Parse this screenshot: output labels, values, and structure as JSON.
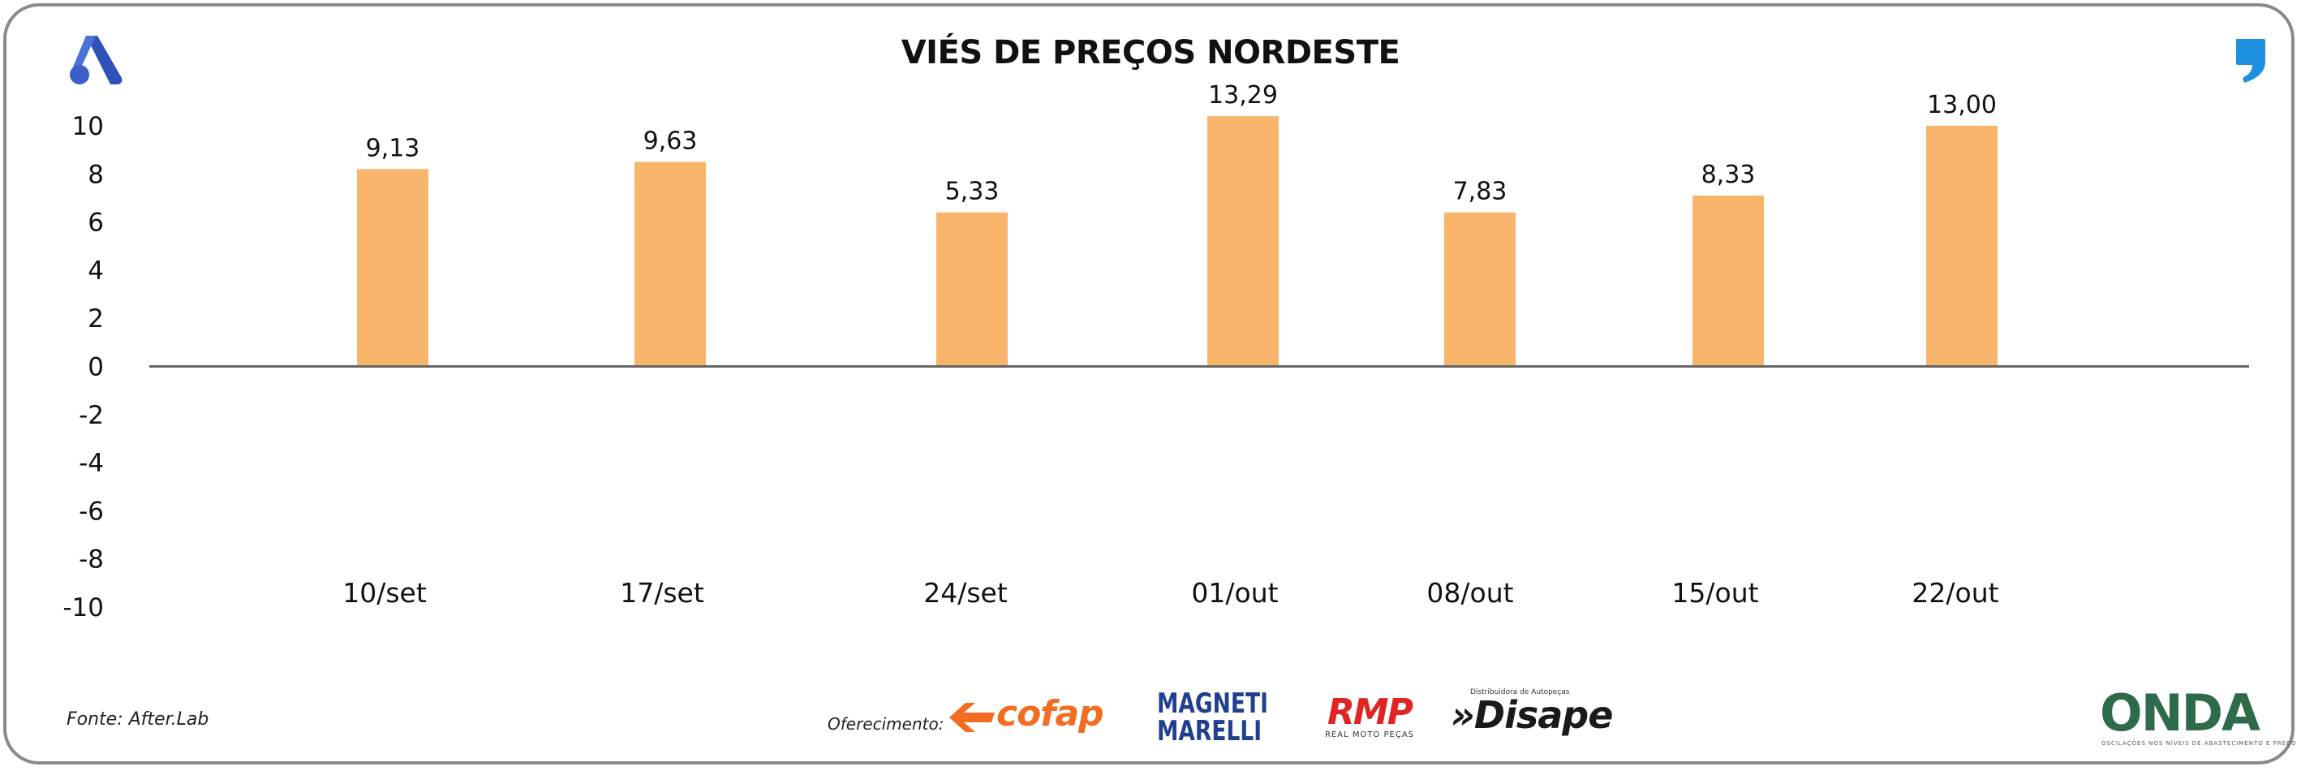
{
  "chart_data": {
    "type": "bar",
    "title": "VIÉS DE PREÇOS NORDESTE",
    "categories": [
      "10/set",
      "17/set",
      "24/set",
      "01/out",
      "08/out",
      "15/out",
      "22/out"
    ],
    "values": [
      9.13,
      9.63,
      5.33,
      13.29,
      7.83,
      8.33,
      13.0
    ],
    "data_labels": [
      "9,13",
      "9,63",
      "5,33",
      "13,29",
      "7,83",
      "8,33",
      "13,00"
    ],
    "bar_heights_shown": [
      8.2,
      8.5,
      6.4,
      10.4,
      6.4,
      7.1,
      10.0
    ],
    "yticks": [
      "10",
      "8",
      "6",
      "4",
      "2",
      "0",
      "-2",
      "-4",
      "-6",
      "-8",
      "-10"
    ],
    "ytick_values": [
      10,
      8,
      6,
      4,
      2,
      0,
      -2,
      -4,
      -6,
      -8,
      -10
    ],
    "ylim": [
      -10,
      10
    ],
    "xlabel": "",
    "ylabel": "",
    "grid": false,
    "colors": {
      "bar": "#f9b46b",
      "axis": "#666666",
      "text": "#111111"
    }
  },
  "footer": {
    "source": "Fonte: After.Lab",
    "offer_label": "Oferecimento:"
  },
  "sponsors": {
    "cofap": "cofap",
    "magneti_line1": "MAGNETI",
    "magneti_line2": "MARELLI",
    "rmp": "RMP",
    "rmp_sub": "REAL MOTO PEÇAS",
    "disape": "»Disape",
    "disape_sub": "Distribuidora de Autopeças",
    "onda": "ONDA",
    "onda_sub": "OSCILAÇÕES NOS NÍVEIS DE ABASTECIMENTO E PREÇO"
  },
  "icons": {
    "brand_logo": "a-logo-icon",
    "quote": "quote-icon"
  },
  "brand_colors": {
    "a_logo": "#3a5fc8",
    "quote": "#1e90e0"
  }
}
